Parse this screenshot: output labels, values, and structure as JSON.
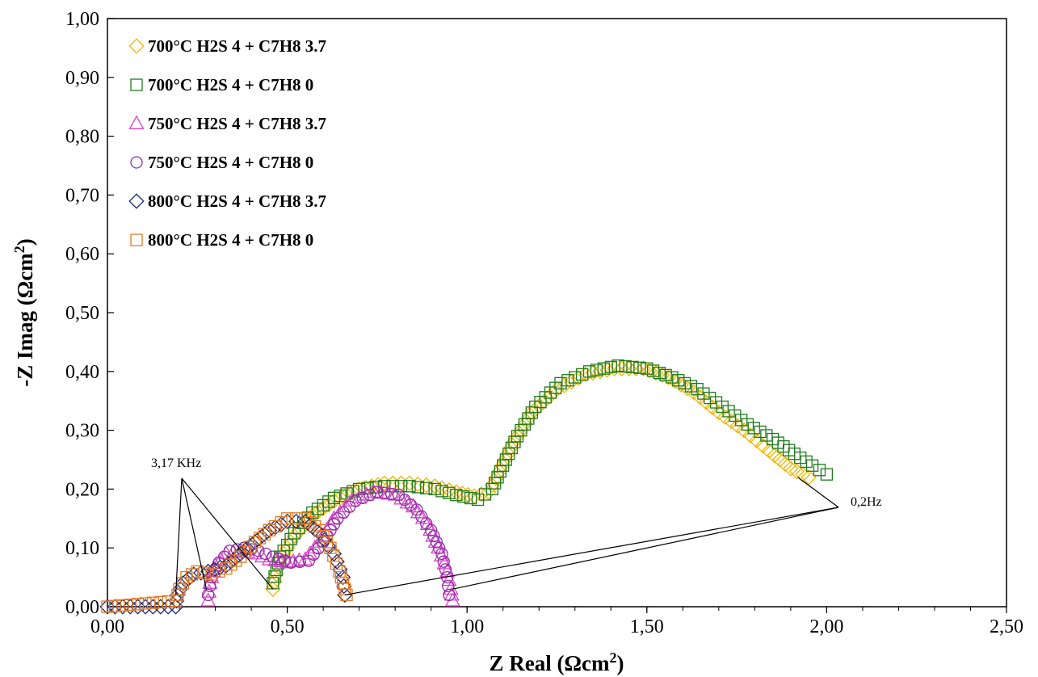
{
  "chart_data": {
    "type": "scatter",
    "xlabel": "Z Real (Ωcm",
    "xlabel_sup": "2",
    "xlabel_end": ")",
    "ylabel": "-Z Imag (Ωcm",
    "ylabel_sup": "2",
    "ylabel_end": ")",
    "xlim": [
      0,
      2.5
    ],
    "ylim": [
      0,
      1.0
    ],
    "x_ticks": [
      "0,00",
      "0,50",
      "1,00",
      "1,50",
      "2,00",
      "2,50"
    ],
    "y_ticks": [
      "0,00",
      "0,10",
      "0,20",
      "0,30",
      "0,40",
      "0,50",
      "0,60",
      "0,70",
      "0,80",
      "0,90",
      "1,00"
    ],
    "grid": false,
    "legend_position": "top-left",
    "annotations": [
      {
        "text": "3,17 KHz",
        "points": [
          [
            0.19,
            0.02
          ],
          [
            0.275,
            0.03
          ],
          [
            0.46,
            0.03
          ]
        ]
      },
      {
        "text": "0,2Hz",
        "points": [
          [
            1.92,
            0.22
          ],
          [
            0.96,
            0.03
          ],
          [
            0.66,
            0.02
          ]
        ]
      }
    ],
    "series": [
      {
        "name": "700°C H2S 4 + C7H8 3.7",
        "marker": "diamond",
        "color": "#F5B400",
        "points": [
          [
            0.46,
            0.03
          ],
          [
            0.48,
            0.08
          ],
          [
            0.52,
            0.12
          ],
          [
            0.57,
            0.155
          ],
          [
            0.63,
            0.18
          ],
          [
            0.7,
            0.2
          ],
          [
            0.77,
            0.21
          ],
          [
            0.84,
            0.21
          ],
          [
            0.91,
            0.205
          ],
          [
            0.97,
            0.195
          ],
          [
            1.02,
            0.188
          ],
          [
            1.06,
            0.195
          ],
          [
            1.09,
            0.23
          ],
          [
            1.13,
            0.28
          ],
          [
            1.18,
            0.33
          ],
          [
            1.25,
            0.37
          ],
          [
            1.33,
            0.395
          ],
          [
            1.41,
            0.405
          ],
          [
            1.49,
            0.405
          ],
          [
            1.56,
            0.39
          ],
          [
            1.63,
            0.365
          ],
          [
            1.7,
            0.33
          ],
          [
            1.77,
            0.3
          ],
          [
            1.84,
            0.265
          ],
          [
            1.9,
            0.235
          ],
          [
            1.95,
            0.22
          ]
        ]
      },
      {
        "name": "700°C H2S 4 + C7H8 0",
        "marker": "square",
        "color": "#1E7B1E",
        "points": [
          [
            0.46,
            0.04
          ],
          [
            0.48,
            0.085
          ],
          [
            0.52,
            0.125
          ],
          [
            0.57,
            0.16
          ],
          [
            0.63,
            0.185
          ],
          [
            0.7,
            0.2
          ],
          [
            0.77,
            0.205
          ],
          [
            0.84,
            0.205
          ],
          [
            0.91,
            0.2
          ],
          [
            0.97,
            0.19
          ],
          [
            1.03,
            0.182
          ],
          [
            1.07,
            0.2
          ],
          [
            1.1,
            0.24
          ],
          [
            1.14,
            0.29
          ],
          [
            1.19,
            0.34
          ],
          [
            1.26,
            0.38
          ],
          [
            1.34,
            0.4
          ],
          [
            1.42,
            0.41
          ],
          [
            1.5,
            0.405
          ],
          [
            1.57,
            0.39
          ],
          [
            1.64,
            0.37
          ],
          [
            1.71,
            0.34
          ],
          [
            1.78,
            0.31
          ],
          [
            1.85,
            0.285
          ],
          [
            1.91,
            0.26
          ],
          [
            1.96,
            0.24
          ],
          [
            2.0,
            0.225
          ]
        ]
      },
      {
        "name": "750°C H2S 4 + C7H8 3.7",
        "marker": "triangle",
        "color": "#E040C8",
        "points": [
          [
            0.28,
            0.01
          ],
          [
            0.285,
            0.04
          ],
          [
            0.3,
            0.07
          ],
          [
            0.33,
            0.09
          ],
          [
            0.37,
            0.095
          ],
          [
            0.41,
            0.09
          ],
          [
            0.45,
            0.08
          ],
          [
            0.5,
            0.075
          ],
          [
            0.55,
            0.08
          ],
          [
            0.59,
            0.11
          ],
          [
            0.63,
            0.15
          ],
          [
            0.68,
            0.18
          ],
          [
            0.74,
            0.195
          ],
          [
            0.8,
            0.19
          ],
          [
            0.85,
            0.17
          ],
          [
            0.89,
            0.14
          ],
          [
            0.92,
            0.1
          ],
          [
            0.945,
            0.06
          ],
          [
            0.955,
            0.03
          ],
          [
            0.96,
            0.01
          ]
        ]
      },
      {
        "name": "750°C H2S 4 + C7H8 0",
        "marker": "circle",
        "color": "#8B2FA8",
        "points": [
          [
            0.28,
            0.02
          ],
          [
            0.29,
            0.05
          ],
          [
            0.31,
            0.075
          ],
          [
            0.34,
            0.095
          ],
          [
            0.38,
            0.1
          ],
          [
            0.42,
            0.095
          ],
          [
            0.46,
            0.085
          ],
          [
            0.51,
            0.075
          ],
          [
            0.56,
            0.078
          ],
          [
            0.6,
            0.11
          ],
          [
            0.64,
            0.15
          ],
          [
            0.69,
            0.18
          ],
          [
            0.75,
            0.195
          ],
          [
            0.81,
            0.19
          ],
          [
            0.86,
            0.165
          ],
          [
            0.9,
            0.13
          ],
          [
            0.93,
            0.09
          ],
          [
            0.945,
            0.05
          ],
          [
            0.95,
            0.02
          ]
        ]
      },
      {
        "name": "800°C H2S 4 + C7H8 3.7",
        "marker": "diamond",
        "color": "#1A2A7A",
        "points": [
          [
            0.0,
            0.0
          ],
          [
            0.19,
            0.0
          ],
          [
            0.195,
            0.02
          ],
          [
            0.21,
            0.04
          ],
          [
            0.24,
            0.055
          ],
          [
            0.28,
            0.06
          ],
          [
            0.33,
            0.07
          ],
          [
            0.37,
            0.09
          ],
          [
            0.41,
            0.11
          ],
          [
            0.45,
            0.13
          ],
          [
            0.5,
            0.145
          ],
          [
            0.55,
            0.145
          ],
          [
            0.59,
            0.125
          ],
          [
            0.63,
            0.09
          ],
          [
            0.655,
            0.05
          ],
          [
            0.66,
            0.02
          ]
        ]
      },
      {
        "name": "800°C H2S 4 + C7H8 0",
        "marker": "square",
        "color": "#E87A1E",
        "points": [
          [
            0.0,
            0.0
          ],
          [
            0.19,
            0.01
          ],
          [
            0.2,
            0.03
          ],
          [
            0.22,
            0.05
          ],
          [
            0.25,
            0.06
          ],
          [
            0.29,
            0.055
          ],
          [
            0.33,
            0.065
          ],
          [
            0.37,
            0.085
          ],
          [
            0.41,
            0.11
          ],
          [
            0.45,
            0.13
          ],
          [
            0.5,
            0.15
          ],
          [
            0.55,
            0.15
          ],
          [
            0.59,
            0.13
          ],
          [
            0.62,
            0.1
          ],
          [
            0.645,
            0.06
          ],
          [
            0.66,
            0.03
          ],
          [
            0.665,
            0.02
          ]
        ]
      }
    ]
  }
}
